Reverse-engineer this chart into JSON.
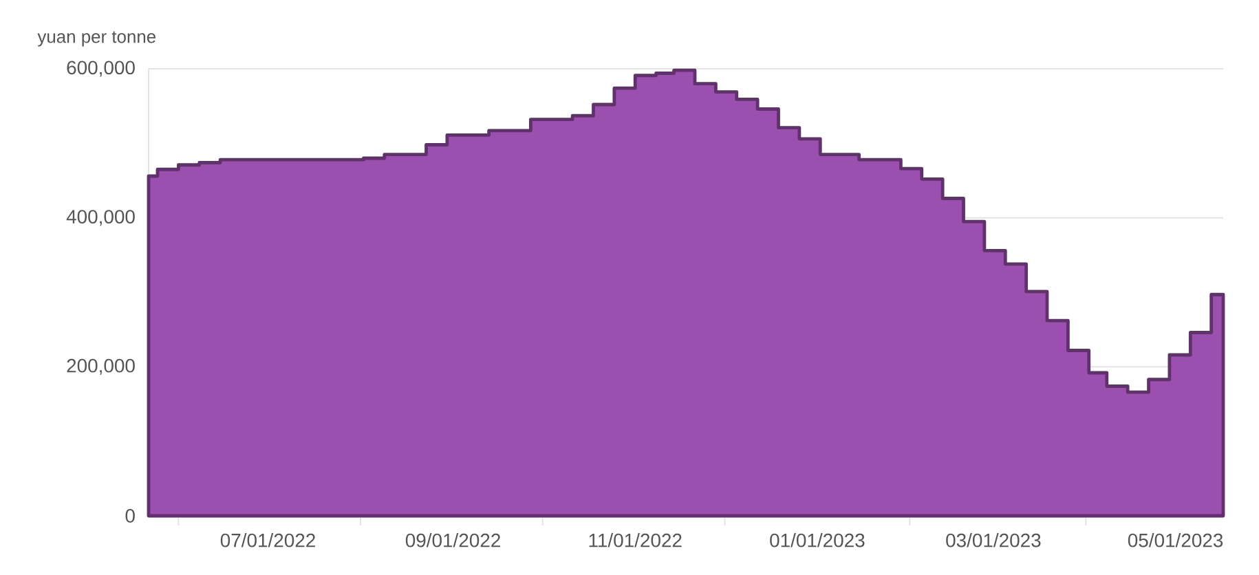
{
  "chart_data": {
    "type": "area",
    "ylabel": "yuan per tonne",
    "x": [
      "2022-05-22",
      "2022-05-25",
      "2022-06-01",
      "2022-06-08",
      "2022-06-15",
      "2022-08-02",
      "2022-08-09",
      "2022-08-23",
      "2022-08-30",
      "2022-09-13",
      "2022-09-27",
      "2022-10-11",
      "2022-10-18",
      "2022-10-25",
      "2022-11-01",
      "2022-11-08",
      "2022-11-14",
      "2022-11-21",
      "2022-11-28",
      "2022-12-05",
      "2022-12-12",
      "2022-12-19",
      "2022-12-26",
      "2023-01-02",
      "2023-01-08",
      "2023-01-15",
      "2023-01-29",
      "2023-02-05",
      "2023-02-12",
      "2023-02-19",
      "2023-02-26",
      "2023-03-05",
      "2023-03-12",
      "2023-03-19",
      "2023-03-26",
      "2023-04-02",
      "2023-04-08",
      "2023-04-15",
      "2023-04-22",
      "2023-04-29",
      "2023-05-06",
      "2023-05-13",
      "2023-05-17"
    ],
    "series": [
      {
        "color": "#9b4fae",
        "values": [
          456000,
          465000,
          471000,
          474000,
          478000,
          480000,
          485000,
          498000,
          511000,
          517000,
          532000,
          537000,
          552000,
          574000,
          591000,
          594000,
          598000,
          580000,
          569000,
          559000,
          546000,
          521000,
          506000,
          485000,
          485000,
          478000,
          466000,
          452000,
          426000,
          395000,
          356000,
          338000,
          301000,
          262000,
          222000,
          192000,
          174000,
          166000,
          183000,
          216000,
          246000,
          297000,
          297000
        ]
      }
    ],
    "xlim": [
      "2022-05-22",
      "2023-05-17"
    ],
    "xticks": [
      {
        "value": "2022-06-01",
        "label": null
      },
      {
        "value": "2022-07-01",
        "label": "07/01/2022"
      },
      {
        "value": "2022-08-01",
        "label": null
      },
      {
        "value": "2022-09-01",
        "label": "09/01/2022"
      },
      {
        "value": "2022-10-01",
        "label": null
      },
      {
        "value": "2022-11-01",
        "label": "11/01/2022"
      },
      {
        "value": "2022-12-01",
        "label": null
      },
      {
        "value": "2023-01-01",
        "label": "01/01/2023"
      },
      {
        "value": "2023-02-01",
        "label": null
      },
      {
        "value": "2023-03-01",
        "label": "03/01/2023"
      },
      {
        "value": "2023-04-01",
        "label": null
      },
      {
        "value": "2023-05-01",
        "label": "05/01/2023"
      }
    ],
    "ylim": [
      0,
      600000
    ],
    "yticks": [
      0,
      {
        "value": 200000,
        "label": "200,000"
      },
      {
        "value": 400000,
        "label": "400,000"
      },
      {
        "value": 600000,
        "label": "600,000"
      }
    ],
    "grid": "y"
  }
}
